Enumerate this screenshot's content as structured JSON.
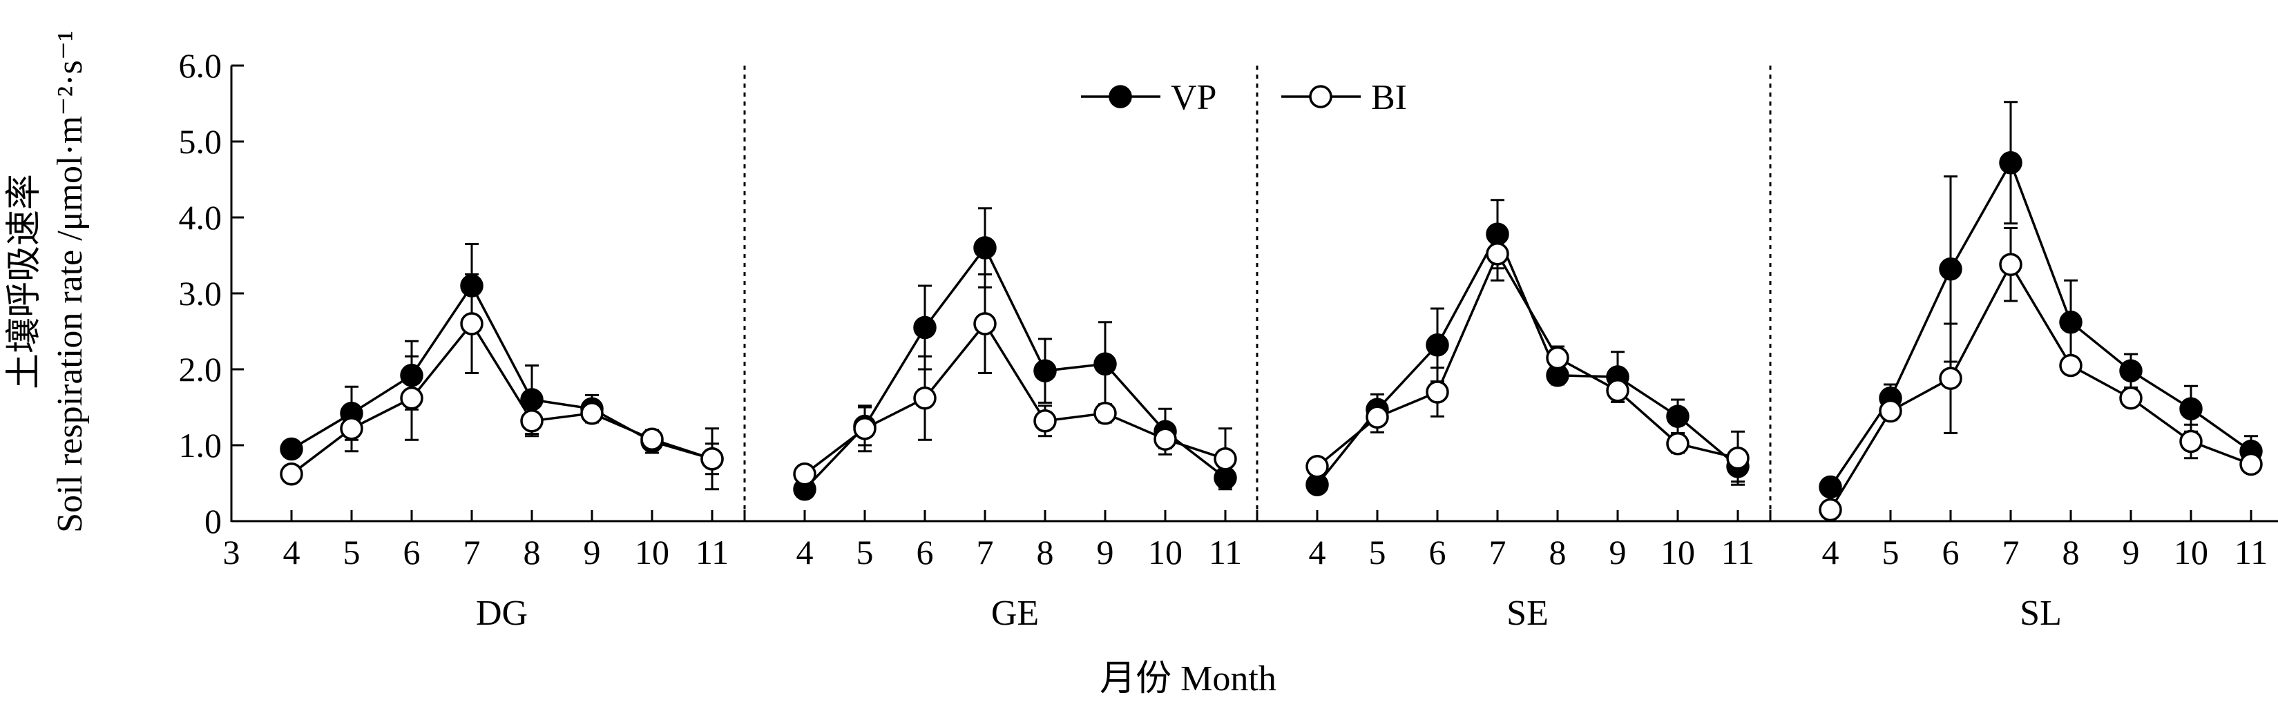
{
  "chart_data": {
    "type": "line",
    "xlabel": "月份 Month",
    "ylabel_cn": "土壤呼吸速率",
    "ylabel_en": "Soil respiration rate /μmol·m⁻²·s⁻¹",
    "ylim": [
      0,
      6
    ],
    "yticks": [
      "0",
      "1.0",
      "2.0",
      "3.0",
      "4.0",
      "5.0",
      "6.0"
    ],
    "xticks": [
      "3",
      "4",
      "5",
      "6",
      "7",
      "8",
      "9",
      "10",
      "11"
    ],
    "x": [
      4,
      5,
      6,
      7,
      8,
      9,
      10,
      11
    ],
    "legend": {
      "placement": "top-center",
      "entries": [
        "VP",
        "BI"
      ]
    },
    "colors": {
      "line": "#000000",
      "vp_fill": "#000000",
      "bi_fill": "#ffffff"
    },
    "panels": [
      {
        "name": "DG",
        "series": [
          {
            "name": "VP",
            "values": [
              0.95,
              1.42,
              1.92,
              3.1,
              1.6,
              1.48,
              1.05,
              0.82
            ],
            "err": [
              0.08,
              0.35,
              0.45,
              0.55,
              0.45,
              0.18,
              0.15,
              0.4
            ]
          },
          {
            "name": "BI",
            "values": [
              0.62,
              1.22,
              1.62,
              2.6,
              1.32,
              1.42,
              1.08,
              0.82
            ],
            "err": [
              0.08,
              0.3,
              0.55,
              0.65,
              0.2,
              0.12,
              0.12,
              0.2
            ]
          }
        ]
      },
      {
        "name": "GE",
        "series": [
          {
            "name": "VP",
            "values": [
              0.42,
              1.25,
              2.55,
              3.6,
              1.98,
              2.07,
              1.18,
              0.57
            ],
            "err": [
              0.08,
              0.25,
              0.55,
              0.52,
              0.42,
              0.55,
              0.3,
              0.12
            ]
          },
          {
            "name": "BI",
            "values": [
              0.62,
              1.22,
              1.62,
              2.6,
              1.32,
              1.42,
              1.08,
              0.82
            ],
            "err": [
              0.08,
              0.3,
              0.55,
              0.65,
              0.2,
              0.12,
              0.12,
              0.4
            ]
          }
        ]
      },
      {
        "name": "SE",
        "series": [
          {
            "name": "VP",
            "values": [
              0.48,
              1.47,
              2.32,
              3.78,
              1.92,
              1.9,
              1.38,
              0.72
            ],
            "err": [
              0.06,
              0.2,
              0.48,
              0.45,
              0.12,
              0.33,
              0.22,
              0.2
            ]
          },
          {
            "name": "BI",
            "values": [
              0.72,
              1.37,
              1.7,
              3.52,
              2.15,
              1.72,
              1.02,
              0.83
            ],
            "err": [
              0.08,
              0.2,
              0.32,
              0.35,
              0.15,
              0.15,
              0.12,
              0.35
            ]
          }
        ]
      },
      {
        "name": "SL",
        "series": [
          {
            "name": "VP",
            "values": [
              0.45,
              1.62,
              3.32,
              4.72,
              2.62,
              1.98,
              1.48,
              0.92
            ],
            "err": [
              0.06,
              0.18,
              1.22,
              0.8,
              0.55,
              0.22,
              0.3,
              0.2
            ]
          },
          {
            "name": "BI",
            "values": [
              0.15,
              1.45,
              1.88,
              3.38,
              2.05,
              1.62,
              1.05,
              0.75
            ],
            "err": [
              0.06,
              0.12,
              0.72,
              0.48,
              0.1,
              0.1,
              0.22,
              0.1
            ]
          }
        ]
      }
    ]
  }
}
